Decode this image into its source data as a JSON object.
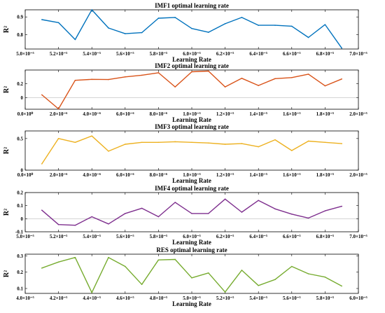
{
  "chart_data": [
    {
      "type": "line",
      "title": "IMF1 optimal learning rate",
      "xlabel": "Learning Rate",
      "ylabel": "R²",
      "color": "#0072BD",
      "xlim": [
        5e-05,
        7e-05
      ],
      "ylim": [
        0.72,
        0.94
      ],
      "xticks": [
        5e-05,
        5.2e-05,
        5.4e-05,
        5.6e-05,
        5.8e-05,
        6e-05,
        6.2e-05,
        6.4e-05,
        6.6e-05,
        6.8e-05,
        7e-05
      ],
      "xtick_labels": [
        "5.0×10⁻⁵",
        "5.2×10⁻⁵",
        "5.4×10⁻⁵",
        "5.6×10⁻⁵",
        "5.8×10⁻⁵",
        "6.0×10⁻⁵",
        "6.2×10⁻⁵",
        "6.4×10⁻⁵",
        "6.6×10⁻⁵",
        "6.8×10⁻⁵",
        "7.0×10⁻⁵"
      ],
      "yticks": [
        0.8,
        0.9
      ],
      "ytick_labels": [
        "0.8",
        "0.9"
      ],
      "x": [
        5.1e-05,
        5.2e-05,
        5.3e-05,
        5.4e-05,
        5.5e-05,
        5.6e-05,
        5.7e-05,
        5.8e-05,
        5.9e-05,
        6e-05,
        6.1e-05,
        6.2e-05,
        6.3e-05,
        6.4e-05,
        6.5e-05,
        6.6e-05,
        6.7e-05,
        6.8e-05,
        6.9e-05
      ],
      "y": [
        0.885,
        0.868,
        0.773,
        0.94,
        0.838,
        0.806,
        0.812,
        0.893,
        0.897,
        0.835,
        0.814,
        0.862,
        0.897,
        0.853,
        0.853,
        0.848,
        0.785,
        0.857,
        0.725
      ]
    },
    {
      "type": "line",
      "title": "IMF2 optimal learning rate",
      "xlabel": "Learning Rate",
      "ylabel": "R²",
      "color": "#D95319",
      "xlim": [
        0,
        2e-05
      ],
      "ylim": [
        -0.17,
        0.4
      ],
      "xticks": [
        0,
        2e-06,
        4e-06,
        6e-06,
        8e-06,
        1e-05,
        1.2e-05,
        1.4e-05,
        1.6e-05,
        1.8e-05,
        2e-05
      ],
      "xtick_labels": [
        "0.0×10⁰",
        "2.0×10⁻⁶",
        "4.0×10⁻⁶",
        "6.0×10⁻⁶",
        "8.0×10⁻⁶",
        "1.0×10⁻⁵",
        "1.2×10⁻⁵",
        "1.4×10⁻⁵",
        "1.6×10⁻⁵",
        "1.8×10⁻⁵",
        "2.0×10⁻⁵"
      ],
      "yticks": [
        0,
        0.2
      ],
      "ytick_labels": [
        "0",
        "0.2"
      ],
      "x": [
        1e-06,
        2e-06,
        3e-06,
        4e-06,
        5e-06,
        6e-06,
        7e-06,
        8e-06,
        9e-06,
        1e-05,
        1.1e-05,
        1.2e-05,
        1.3e-05,
        1.4e-05,
        1.5e-05,
        1.6e-05,
        1.7e-05,
        1.8e-05,
        1.9e-05
      ],
      "y": [
        0.04,
        -0.165,
        0.25,
        0.265,
        0.262,
        0.3,
        0.325,
        0.36,
        0.155,
        0.375,
        0.385,
        0.155,
        0.28,
        0.175,
        0.275,
        0.29,
        0.34,
        0.17,
        0.27
      ]
    },
    {
      "type": "line",
      "title": "IMF3 optimal learning rate",
      "xlabel": "Learning Rate",
      "ylabel": "R²",
      "color": "#EDB120",
      "xlim": [
        0,
        2e-05
      ],
      "ylim": [
        0,
        0.62
      ],
      "xticks": [
        0,
        2e-06,
        4e-06,
        6e-06,
        8e-06,
        1e-05,
        1.2e-05,
        1.4e-05,
        1.6e-05,
        1.8e-05,
        2e-05
      ],
      "xtick_labels": [
        "0.0×10⁰",
        "2.0×10⁻⁶",
        "4.0×10⁻⁶",
        "6.0×10⁻⁶",
        "8.0×10⁻⁶",
        "1.0×10⁻⁵",
        "1.2×10⁻⁵",
        "1.4×10⁻⁵",
        "1.6×10⁻⁵",
        "1.8×10⁻⁵",
        "2.0×10⁻⁵"
      ],
      "yticks": [
        0,
        0.5
      ],
      "ytick_labels": [
        "0",
        "0.5"
      ],
      "x": [
        1e-06,
        2e-06,
        3e-06,
        4e-06,
        5e-06,
        6e-06,
        7e-06,
        8e-06,
        9e-06,
        1e-05,
        1.1e-05,
        1.2e-05,
        1.3e-05,
        1.4e-05,
        1.5e-05,
        1.6e-05,
        1.7e-05,
        1.8e-05,
        1.9e-05
      ],
      "y": [
        0.1,
        0.5,
        0.44,
        0.54,
        0.3,
        0.41,
        0.44,
        0.44,
        0.45,
        0.44,
        0.43,
        0.41,
        0.42,
        0.37,
        0.48,
        0.31,
        0.46,
        0.44,
        0.42
      ]
    },
    {
      "type": "line",
      "title": "IMF4 optimal learning rate",
      "xlabel": "Learning Rate",
      "ylabel": "R²",
      "color": "#7E2F8E",
      "xlim": [
        5e-05,
        7e-05
      ],
      "ylim": [
        -0.1,
        0.2
      ],
      "xticks": [
        5e-05,
        5.2e-05,
        5.4e-05,
        5.6e-05,
        5.8e-05,
        6e-05,
        6.2e-05,
        6.4e-05,
        6.6e-05,
        6.8e-05,
        7e-05
      ],
      "xtick_labels": [
        "5.0×10⁻⁵",
        "5.2×10⁻⁵",
        "5.4×10⁻⁵",
        "5.6×10⁻⁵",
        "5.8×10⁻⁵",
        "6.0×10⁻⁵",
        "6.2×10⁻⁵",
        "6.4×10⁻⁵",
        "6.6×10⁻⁵",
        "6.8×10⁻⁵",
        "7.0×10⁻⁵"
      ],
      "yticks": [
        -0.1,
        0,
        0.1,
        0.2
      ],
      "ytick_labels": [
        "-0.1",
        "0",
        "0.1",
        "0.2"
      ],
      "x": [
        5.1e-05,
        5.2e-05,
        5.3e-05,
        5.4e-05,
        5.5e-05,
        5.6e-05,
        5.7e-05,
        5.8e-05,
        5.9e-05,
        6e-05,
        6.1e-05,
        6.2e-05,
        6.3e-05,
        6.4e-05,
        6.5e-05,
        6.6e-05,
        6.7e-05,
        6.8e-05,
        6.9e-05
      ],
      "y": [
        0.065,
        -0.045,
        -0.05,
        0.015,
        -0.04,
        0.04,
        0.08,
        0.015,
        0.125,
        0.04,
        0.04,
        0.15,
        0.05,
        0.14,
        0.075,
        0.035,
        0.005,
        0.06,
        0.095
      ]
    },
    {
      "type": "line",
      "title": "RES optimal learning rate",
      "xlabel": "Learning Rate",
      "ylabel": "R²",
      "color": "#77AC30",
      "xlim": [
        4e-05,
        6e-05
      ],
      "ylim": [
        0.07,
        0.31
      ],
      "xticks": [
        4e-05,
        4.2e-05,
        4.4e-05,
        4.6e-05,
        4.8e-05,
        5e-05,
        5.2e-05,
        5.4e-05,
        5.6e-05,
        5.8e-05,
        6e-05
      ],
      "xtick_labels": [
        "4.0×10⁻⁵",
        "4.2×10⁻⁵",
        "4.4×10⁻⁵",
        "4.6×10⁻⁵",
        "4.8×10⁻⁵",
        "5.0×10⁻⁵",
        "5.2×10⁻⁵",
        "5.4×10⁻⁵",
        "5.6×10⁻⁵",
        "5.8×10⁻⁵",
        "6.0×10⁻⁵"
      ],
      "yticks": [
        0.1,
        0.2,
        0.3
      ],
      "ytick_labels": [
        "0.1",
        "0.2",
        "0.3"
      ],
      "x": [
        4.1e-05,
        4.2e-05,
        4.3e-05,
        4.4e-05,
        4.5e-05,
        4.6e-05,
        4.7e-05,
        4.8e-05,
        4.9e-05,
        5e-05,
        5.1e-05,
        5.2e-05,
        5.3e-05,
        5.4e-05,
        5.5e-05,
        5.6e-05,
        5.7e-05,
        5.8e-05,
        5.9e-05
      ],
      "y": [
        0.225,
        0.262,
        0.29,
        0.075,
        0.29,
        0.235,
        0.125,
        0.275,
        0.278,
        0.165,
        0.195,
        0.078,
        0.212,
        0.118,
        0.155,
        0.235,
        0.19,
        0.17,
        0.115
      ]
    }
  ]
}
